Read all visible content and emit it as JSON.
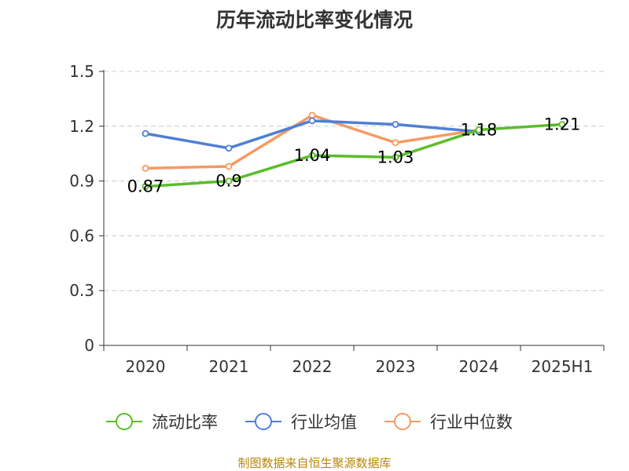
{
  "title": "历年流动比率变化情况",
  "source": "制图数据来自恒生聚源数据库",
  "chart_data": {
    "type": "line",
    "title": "历年流动比率变化情况",
    "categories": [
      "2020",
      "2021",
      "2022",
      "2023",
      "2024",
      "2025H1"
    ],
    "y_ticks": [
      "0",
      "0.3",
      "0.6",
      "0.9",
      "1.2",
      "1.5"
    ],
    "ylim": [
      0,
      1.5
    ],
    "grid": "horizontal dashed",
    "legend_position": "bottom",
    "series": [
      {
        "name": "流动比率",
        "color": "#5bbd2b",
        "values": [
          0.87,
          0.9,
          1.04,
          1.03,
          1.18,
          1.21
        ],
        "labels": [
          "0.87",
          "0.9",
          "1.04",
          "1.03",
          "1.18",
          "1.21"
        ]
      },
      {
        "name": "行业均值",
        "color": "#4f7fd6",
        "values": [
          1.16,
          1.08,
          1.23,
          1.21,
          1.17,
          null
        ]
      },
      {
        "name": "行业中位数",
        "color": "#f59a62",
        "values": [
          0.97,
          0.98,
          1.26,
          1.11,
          1.18,
          null
        ]
      }
    ]
  }
}
